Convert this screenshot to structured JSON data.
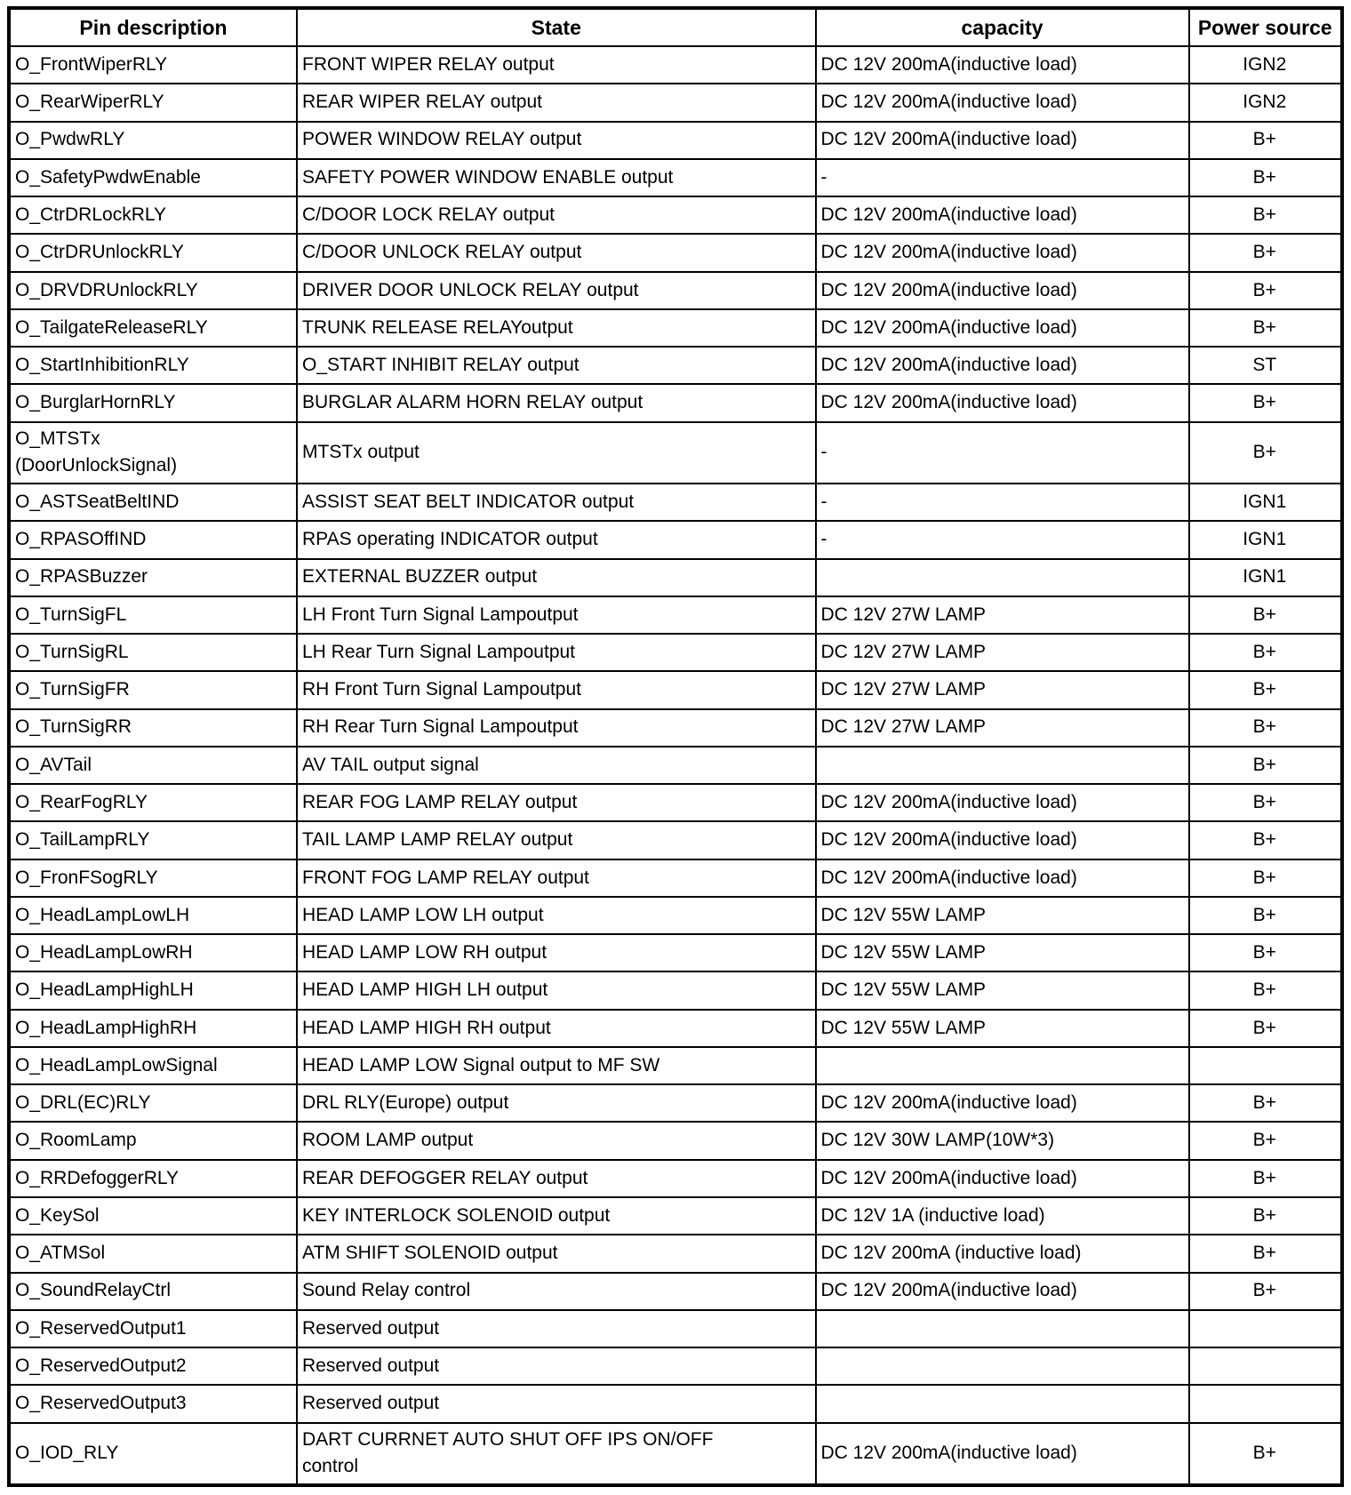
{
  "table": {
    "columns": [
      "Pin description",
      "State",
      "capacity",
      "Power source"
    ],
    "rows": [
      {
        "pin": "O_FrontWiperRLY",
        "state": "FRONT WIPER RELAY output",
        "capacity": "DC 12V 200mA(inductive load)",
        "power": "IGN2"
      },
      {
        "pin": "O_RearWiperRLY",
        "state": "REAR WIPER RELAY output",
        "capacity": "DC 12V 200mA(inductive load)",
        "power": "IGN2"
      },
      {
        "pin": "O_PwdwRLY",
        "state": "POWER WINDOW RELAY output",
        "capacity": "DC 12V 200mA(inductive load)",
        "power": "B+"
      },
      {
        "pin": "O_SafetyPwdwEnable",
        "state": "SAFETY POWER WINDOW ENABLE output",
        "capacity": "-",
        "power": "B+"
      },
      {
        "pin": "O_CtrDRLockRLY",
        "state": "C/DOOR LOCK RELAY output",
        "capacity": "DC 12V 200mA(inductive load)",
        "power": "B+"
      },
      {
        "pin": "O_CtrDRUnlockRLY",
        "state": "C/DOOR UNLOCK RELAY output",
        "capacity": "DC 12V 200mA(inductive load)",
        "power": "B+"
      },
      {
        "pin": "O_DRVDRUnlockRLY",
        "state": "DRIVER DOOR UNLOCK RELAY output",
        "capacity": "DC 12V 200mA(inductive load)",
        "power": "B+"
      },
      {
        "pin": "O_TailgateReleaseRLY",
        "state": "TRUNK RELEASE RELAYoutput",
        "capacity": "DC 12V 200mA(inductive load)",
        "power": "B+"
      },
      {
        "pin": "O_StartInhibitionRLY",
        "state": "O_START INHIBIT RELAY output",
        "capacity": "DC 12V 200mA(inductive load)",
        "power": "ST"
      },
      {
        "pin": "O_BurglarHornRLY",
        "state": "BURGLAR ALARM HORN RELAY output",
        "capacity": "DC 12V 200mA(inductive load)",
        "power": "B+"
      },
      {
        "pin": "O_MTSTx\n(DoorUnlockSignal)",
        "state": "MTSTx output",
        "capacity": "-",
        "power": "B+"
      },
      {
        "pin": "O_ASTSeatBeltIND",
        "state": "ASSIST SEAT BELT INDICATOR output",
        "capacity": "-",
        "power": "IGN1"
      },
      {
        "pin": "O_RPASOffIND",
        "state": "RPAS operating INDICATOR output",
        "capacity": "-",
        "power": "IGN1"
      },
      {
        "pin": "O_RPASBuzzer",
        "state": "EXTERNAL BUZZER output",
        "capacity": "",
        "power": "IGN1"
      },
      {
        "pin": "O_TurnSigFL",
        "state": "LH Front Turn Signal Lampoutput",
        "capacity": "DC 12V 27W LAMP",
        "power": "B+"
      },
      {
        "pin": "O_TurnSigRL",
        "state": "LH Rear Turn Signal Lampoutput",
        "capacity": "DC 12V 27W LAMP",
        "power": "B+"
      },
      {
        "pin": "O_TurnSigFR",
        "state": "RH Front Turn Signal Lampoutput",
        "capacity": "DC 12V 27W LAMP",
        "power": "B+"
      },
      {
        "pin": "O_TurnSigRR",
        "state": "RH Rear Turn Signal Lampoutput",
        "capacity": "DC 12V 27W LAMP",
        "power": "B+"
      },
      {
        "pin": "O_AVTail",
        "state": "AV TAIL output signal",
        "capacity": "",
        "power": "B+"
      },
      {
        "pin": "O_RearFogRLY",
        "state": "REAR FOG LAMP RELAY output",
        "capacity": "DC 12V 200mA(inductive load)",
        "power": "B+"
      },
      {
        "pin": "O_TailLampRLY",
        "state": "TAIL LAMP LAMP RELAY output",
        "capacity": "DC 12V 200mA(inductive load)",
        "power": "B+"
      },
      {
        "pin": "O_FronFSogRLY",
        "state": "FRONT FOG LAMP RELAY output",
        "capacity": "DC 12V 200mA(inductive load)",
        "power": "B+"
      },
      {
        "pin": "O_HeadLampLowLH",
        "state": "HEAD LAMP LOW LH output",
        "capacity": "DC 12V 55W LAMP",
        "power": "B+"
      },
      {
        "pin": "O_HeadLampLowRH",
        "state": "HEAD LAMP LOW RH output",
        "capacity": "DC 12V 55W LAMP",
        "power": "B+"
      },
      {
        "pin": "O_HeadLampHighLH",
        "state": "HEAD LAMP HIGH LH output",
        "capacity": "DC 12V 55W LAMP",
        "power": "B+"
      },
      {
        "pin": "O_HeadLampHighRH",
        "state": "HEAD LAMP HIGH RH output",
        "capacity": "DC 12V 55W LAMP",
        "power": "B+"
      },
      {
        "pin": "O_HeadLampLowSignal",
        "state": "HEAD LAMP LOW Signal output to MF SW",
        "capacity": "",
        "power": ""
      },
      {
        "pin": "O_DRL(EC)RLY",
        "state": "DRL RLY(Europe) output",
        "capacity": "DC 12V 200mA(inductive load)",
        "power": "B+"
      },
      {
        "pin": "O_RoomLamp",
        "state": "ROOM LAMP output",
        "capacity": "DC 12V 30W LAMP(10W*3)",
        "power": "B+"
      },
      {
        "pin": "O_RRDefoggerRLY",
        "state": "REAR DEFOGGER RELAY output",
        "capacity": "DC 12V 200mA(inductive load)",
        "power": "B+"
      },
      {
        "pin": "O_KeySol",
        "state": "KEY INTERLOCK SOLENOID output",
        "capacity": "DC 12V 1A (inductive load)",
        "power": "B+"
      },
      {
        "pin": "O_ATMSol",
        "state": "ATM SHIFT SOLENOID output",
        "capacity": "DC 12V 200mA (inductive load)",
        "power": "B+"
      },
      {
        "pin": "O_SoundRelayCtrl",
        "state": "Sound Relay control",
        "capacity": "DC 12V 200mA(inductive load)",
        "power": "B+"
      },
      {
        "pin": "O_ReservedOutput1",
        "state": "Reserved output",
        "capacity": "",
        "power": ""
      },
      {
        "pin": "O_ReservedOutput2",
        "state": "Reserved output",
        "capacity": "",
        "power": ""
      },
      {
        "pin": "O_ReservedOutput3",
        "state": "Reserved output",
        "capacity": "",
        "power": ""
      },
      {
        "pin": "O_IOD_RLY",
        "state": "DART CURRNET AUTO SHUT OFF IPS ON/OFF\ncontrol",
        "capacity": "DC 12V 200mA(inductive load)",
        "power": "B+"
      }
    ]
  }
}
